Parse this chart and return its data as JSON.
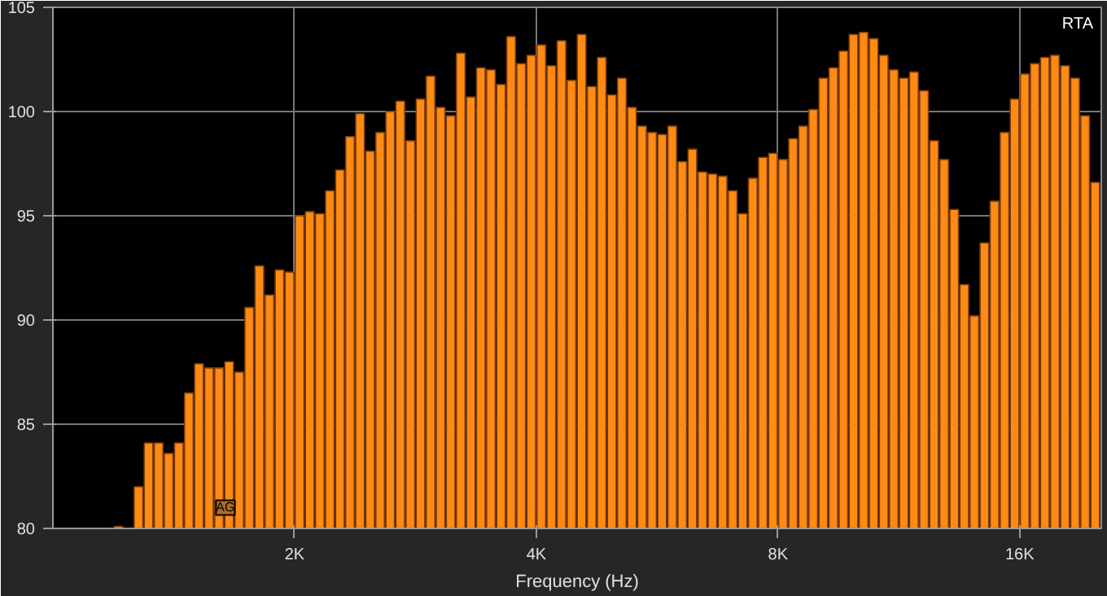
{
  "chart_data": {
    "type": "bar",
    "title": "RTA",
    "xlabel": "Frequency (Hz)",
    "log": "x",
    "color": "#ff8a14",
    "grid": true,
    "x": [
      1207,
      1242,
      1278,
      1316,
      1354,
      1394,
      1435,
      1477,
      1520,
      1565,
      1610,
      1658,
      1706,
      1756,
      1808,
      1861,
      1915,
      1971,
      2029,
      2089,
      2150,
      2213,
      2278,
      2344,
      2413,
      2484,
      2556,
      2631,
      2708,
      2788,
      2870,
      2954,
      3040,
      3129,
      3221,
      3315,
      3412,
      3512,
      3615,
      3721,
      3830,
      3943,
      4058,
      4177,
      4300,
      4425,
      4555,
      4689,
      4826,
      4967,
      5113,
      5263,
      5417,
      5576,
      5739,
      5907,
      6080,
      6258,
      6442,
      6631,
      6825,
      7025,
      7231,
      7443,
      7661,
      7885,
      8116,
      8354,
      8599,
      8851,
      9110,
      9377,
      9652,
      9935,
      10226,
      10526,
      10834,
      11151,
      11478,
      11814,
      12161,
      12517,
      12884,
      13261,
      13650,
      14050,
      14461,
      14885,
      15321,
      15770,
      16233,
      16708,
      17198,
      17702,
      18221,
      18754,
      19304,
      19870
    ],
    "values": [
      80.1,
      null,
      82.0,
      84.1,
      84.1,
      83.6,
      84.1,
      86.5,
      87.9,
      87.7,
      87.7,
      88.0,
      87.5,
      90.6,
      92.6,
      91.2,
      92.4,
      92.3,
      95.0,
      95.2,
      95.1,
      96.2,
      97.2,
      98.8,
      99.9,
      98.1,
      99.0,
      100.0,
      100.5,
      98.6,
      100.6,
      101.7,
      100.2,
      99.8,
      102.8,
      100.7,
      102.1,
      102.0,
      101.3,
      103.6,
      102.3,
      102.7,
      103.2,
      102.2,
      103.4,
      101.5,
      103.7,
      101.2,
      102.6,
      100.8,
      101.6,
      100.2,
      99.3,
      99.0,
      98.9,
      99.3,
      97.6,
      98.2,
      97.1,
      97.0,
      96.9,
      96.2,
      95.1,
      96.8,
      97.8,
      98.0,
      97.7,
      98.7,
      99.3,
      100.1,
      101.6,
      102.1,
      102.9,
      103.7,
      103.8,
      103.5,
      102.7,
      102.0,
      101.6,
      101.9,
      101.0,
      98.6,
      97.7,
      95.3,
      91.7,
      90.2,
      93.7,
      95.7,
      99.0,
      100.6,
      101.8,
      102.3,
      102.6,
      102.7,
      102.2,
      101.6,
      99.8,
      96.6
    ],
    "xlim": [
      1000,
      20220
    ],
    "xticks": [
      {
        "value": 2000,
        "label": "2K"
      },
      {
        "value": 4000,
        "label": "4K"
      },
      {
        "value": 8000,
        "label": "8K"
      },
      {
        "value": 16000,
        "label": "16K"
      }
    ],
    "ylim": [
      80,
      105
    ],
    "yticks": [
      80,
      85,
      90,
      95,
      100,
      105
    ],
    "annotations": [
      {
        "text": "AG",
        "x": 1640,
        "y": 81.0
      }
    ]
  }
}
